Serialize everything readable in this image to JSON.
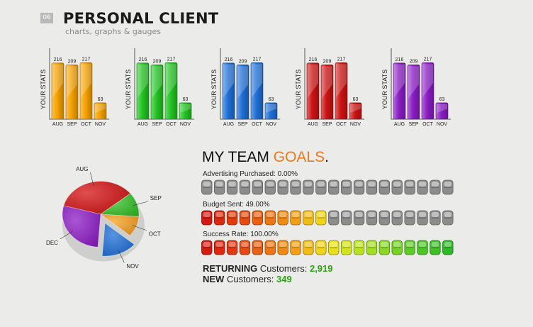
{
  "header": {
    "badge": "06",
    "title": "PERSONAL CLIENT",
    "subtitle": "charts, graphs & gauges"
  },
  "bar_theme_colors": [
    "#f5a100",
    "#22c422",
    "#1f6fd6",
    "#cc1313",
    "#8a1cc4"
  ],
  "chart_data": [
    {
      "type": "bar",
      "ylabel": "YOUR STATS",
      "categories": [
        "AUG",
        "SEP",
        "OCT",
        "NOV"
      ],
      "values": [
        216,
        209,
        217,
        63
      ],
      "color": "#f5a100"
    },
    {
      "type": "bar",
      "ylabel": "YOUR STATS",
      "categories": [
        "AUG",
        "SEP",
        "OCT",
        "NOV"
      ],
      "values": [
        216,
        209,
        217,
        63
      ],
      "color": "#22c422"
    },
    {
      "type": "bar",
      "ylabel": "YOUR STATS",
      "categories": [
        "AUG",
        "SEP",
        "OCT",
        "NOV"
      ],
      "values": [
        216,
        209,
        217,
        63
      ],
      "color": "#1f6fd6"
    },
    {
      "type": "bar",
      "ylabel": "YOUR STATS",
      "categories": [
        "AUG",
        "SEP",
        "OCT",
        "NOV"
      ],
      "values": [
        216,
        209,
        217,
        63
      ],
      "color": "#cc1313"
    },
    {
      "type": "bar",
      "ylabel": "YOUR STATS",
      "categories": [
        "AUG",
        "SEP",
        "OCT",
        "NOV"
      ],
      "values": [
        216,
        209,
        217,
        63
      ],
      "color": "#8a1cc4"
    },
    {
      "type": "pie",
      "labels": [
        "AUG",
        "SEP",
        "OCT",
        "NOV",
        "DEC"
      ],
      "values": [
        35,
        12,
        10,
        15,
        28
      ],
      "colors": [
        "#d41313",
        "#33c026",
        "#f6a020",
        "#1e6fd8",
        "#8e1cc7"
      ],
      "exploded": "NOV"
    }
  ],
  "goals": {
    "title_main": "MY TEAM ",
    "title_accent": "GOALS",
    "title_end": ".",
    "gauges": [
      {
        "label": "Advertising Purchased: 0.00%",
        "value": 0.0
      },
      {
        "label": "Budget Sent: 49.00%",
        "value": 0.49
      },
      {
        "label": "Success Rate: 100.00%",
        "value": 1.0
      }
    ],
    "segment_count": 20,
    "segment_colors": [
      "#d41a10",
      "#dc2a10",
      "#e03a10",
      "#e44a12",
      "#ea6014",
      "#ee7614",
      "#f08a16",
      "#f3a018",
      "#f2bc18",
      "#f0d41a",
      "#e6e01c",
      "#d2e21e",
      "#bae220",
      "#a2de22",
      "#8ad824",
      "#74d226",
      "#5ecc26",
      "#4cc626",
      "#3cc026",
      "#2eba26"
    ]
  },
  "stats": {
    "returning_bold": "RETURNING",
    "returning_text": " Customers: ",
    "returning_value": "2,919",
    "new_bold": "NEW",
    "new_text": " Customers: ",
    "new_value": "349"
  }
}
